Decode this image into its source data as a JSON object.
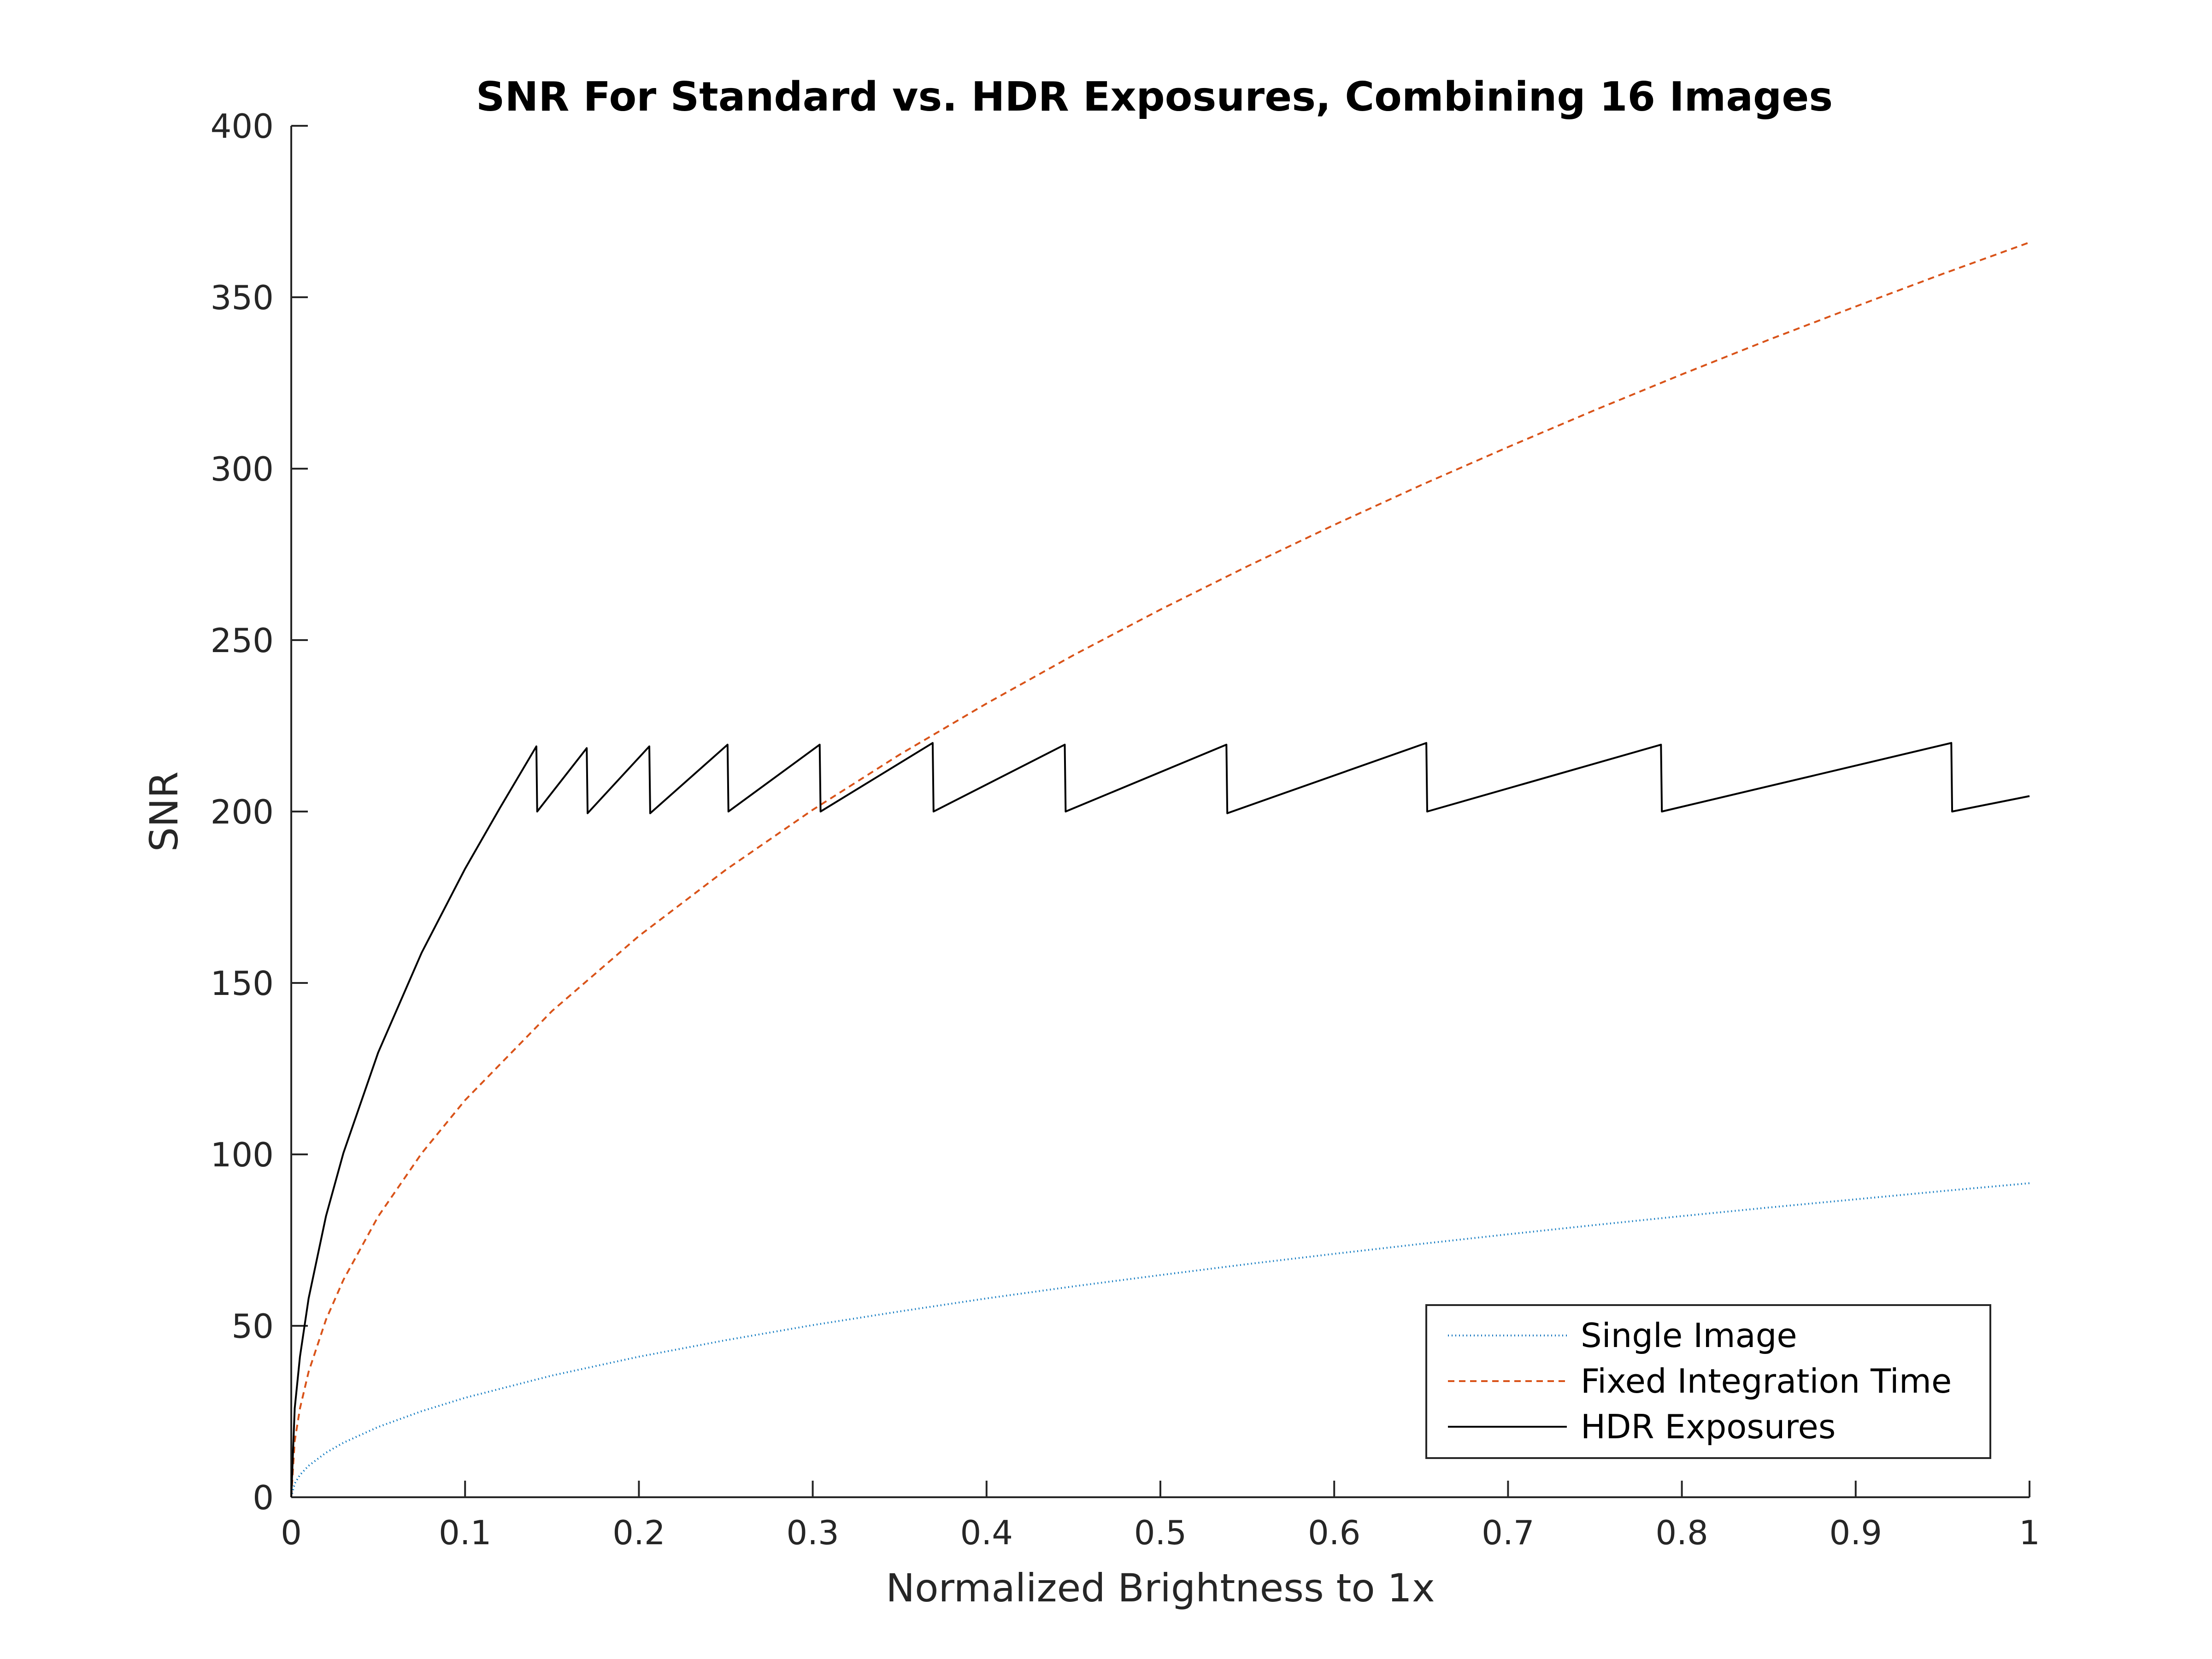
{
  "chart_data": {
    "type": "line",
    "title": "SNR For Standard vs. HDR Exposures, Combining 16 Images",
    "xlabel": "Normalized Brightness to 1x",
    "ylabel": "SNR",
    "xlim": [
      0,
      1
    ],
    "ylim": [
      0,
      400
    ],
    "x_ticks": [
      0,
      0.1,
      0.2,
      0.3,
      0.4,
      0.5,
      0.6,
      0.7,
      0.8,
      0.9,
      1
    ],
    "x_tick_labels": [
      "0",
      "0.1",
      "0.2",
      "0.3",
      "0.4",
      "0.5",
      "0.6",
      "0.7",
      "0.8",
      "0.9",
      "1"
    ],
    "y_ticks": [
      0,
      50,
      100,
      150,
      200,
      250,
      300,
      350,
      400
    ],
    "y_tick_labels": [
      "0",
      "50",
      "100",
      "150",
      "200",
      "250",
      "300",
      "350",
      "400"
    ],
    "grid": false,
    "legend_position": "bottom-right",
    "series": [
      {
        "name": "Single Image",
        "color": "#0072BD",
        "style": "dotted",
        "points": [
          [
            0,
            0
          ],
          [
            0.002,
            4
          ],
          [
            0.005,
            6.5
          ],
          [
            0.01,
            9.2
          ],
          [
            0.02,
            13
          ],
          [
            0.03,
            15.9
          ],
          [
            0.05,
            20.5
          ],
          [
            0.075,
            25.1
          ],
          [
            0.1,
            29
          ],
          [
            0.15,
            35.5
          ],
          [
            0.2,
            41
          ],
          [
            0.25,
            45.8
          ],
          [
            0.3,
            50.2
          ],
          [
            0.35,
            54.2
          ],
          [
            0.4,
            58
          ],
          [
            0.45,
            61.5
          ],
          [
            0.5,
            64.8
          ],
          [
            0.55,
            68
          ],
          [
            0.6,
            71
          ],
          [
            0.65,
            73.9
          ],
          [
            0.7,
            76.7
          ],
          [
            0.75,
            79.4
          ],
          [
            0.8,
            82
          ],
          [
            0.85,
            84.5
          ],
          [
            0.9,
            86.9
          ],
          [
            0.95,
            89.3
          ],
          [
            1,
            91.6
          ]
        ]
      },
      {
        "name": "Fixed Integration Time",
        "color": "#D95319",
        "style": "dashed",
        "points": [
          [
            0,
            0
          ],
          [
            0.002,
            16.4
          ],
          [
            0.005,
            25.9
          ],
          [
            0.01,
            36.6
          ],
          [
            0.02,
            51.8
          ],
          [
            0.03,
            63.4
          ],
          [
            0.05,
            81.9
          ],
          [
            0.075,
            100.3
          ],
          [
            0.1,
            115.8
          ],
          [
            0.15,
            141.8
          ],
          [
            0.2,
            163.7
          ],
          [
            0.25,
            183
          ],
          [
            0.3,
            200.5
          ],
          [
            0.35,
            216.6
          ],
          [
            0.4,
            231.5
          ],
          [
            0.45,
            245.6
          ],
          [
            0.5,
            258.9
          ],
          [
            0.55,
            271.5
          ],
          [
            0.6,
            283.6
          ],
          [
            0.65,
            295.2
          ],
          [
            0.7,
            306.3
          ],
          [
            0.75,
            317.1
          ],
          [
            0.8,
            327.5
          ],
          [
            0.85,
            337.6
          ],
          [
            0.9,
            347.3
          ],
          [
            0.95,
            356.8
          ],
          [
            1,
            366
          ]
        ]
      },
      {
        "name": "HDR Exposures",
        "color": "#000000",
        "style": "solid",
        "points": [
          [
            0,
            0
          ],
          [
            0.002,
            25.9
          ],
          [
            0.005,
            41
          ],
          [
            0.01,
            58
          ],
          [
            0.02,
            82
          ],
          [
            0.03,
            100.4
          ],
          [
            0.05,
            129.7
          ],
          [
            0.075,
            158.8
          ],
          [
            0.1,
            183.3
          ],
          [
            0.12,
            201
          ],
          [
            0.141,
            219
          ],
          [
            0.1415,
            200
          ],
          [
            0.17,
            218.5
          ],
          [
            0.1705,
            199.5
          ],
          [
            0.206,
            219
          ],
          [
            0.2065,
            199.5
          ],
          [
            0.251,
            219.5
          ],
          [
            0.2515,
            200
          ],
          [
            0.304,
            219.5
          ],
          [
            0.3045,
            200
          ],
          [
            0.369,
            220
          ],
          [
            0.3695,
            200
          ],
          [
            0.445,
            219.5
          ],
          [
            0.4455,
            200
          ],
          [
            0.538,
            219.5
          ],
          [
            0.5385,
            199.5
          ],
          [
            0.653,
            220
          ],
          [
            0.6535,
            200
          ],
          [
            0.788,
            219.5
          ],
          [
            0.7885,
            200
          ],
          [
            0.955,
            220
          ],
          [
            0.9555,
            200
          ],
          [
            1,
            204.5
          ]
        ]
      }
    ]
  }
}
